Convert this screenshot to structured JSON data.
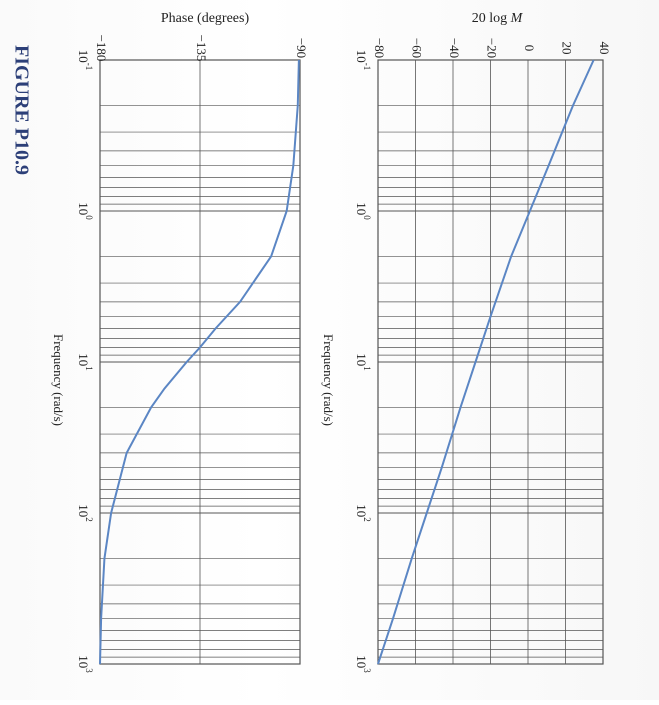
{
  "figure_caption": "FIGURE P10.9",
  "colors": {
    "curve": "#5b86c4",
    "grid": "#555555",
    "caption": "#2c3f78"
  },
  "chart_data": [
    {
      "type": "line",
      "title": "",
      "ylabel": "20 log M",
      "xlabel": "Frequency (rad/s)",
      "x_scale": "log",
      "xlim": [
        0.1,
        1000
      ],
      "ylim": [
        -80,
        40
      ],
      "x_ticks": [
        "10^-1",
        "10^0",
        "10^1",
        "10^2",
        "10^3"
      ],
      "x_tick_labels": [
        {
          "base": "10",
          "exp": "-1"
        },
        {
          "base": "10",
          "exp": "0"
        },
        {
          "base": "10",
          "exp": "1"
        },
        {
          "base": "10",
          "exp": "2"
        },
        {
          "base": "10",
          "exp": "3"
        }
      ],
      "y_ticks": [
        "40",
        "20",
        "0",
        "-20",
        "-40",
        "-60",
        "-80"
      ],
      "grid": true,
      "series": [
        {
          "x": [
            0.1,
            0.2,
            0.5,
            1,
            2,
            5,
            10,
            20,
            50,
            100,
            200,
            500,
            1000
          ],
          "y": [
            35,
            24,
            11,
            1,
            -9,
            -20,
            -28,
            -36,
            -46,
            -54,
            -62,
            -72,
            -80
          ]
        }
      ]
    },
    {
      "type": "line",
      "title": "",
      "ylabel": "Phase (degrees)",
      "xlabel": "Frequency (rad/s)",
      "x_scale": "log",
      "xlim": [
        0.1,
        1000
      ],
      "ylim": [
        -180,
        -90
      ],
      "x_ticks": [
        "10^-1",
        "10^0",
        "10^1",
        "10^2",
        "10^3"
      ],
      "x_tick_labels": [
        {
          "base": "10",
          "exp": "-1"
        },
        {
          "base": "10",
          "exp": "0"
        },
        {
          "base": "10",
          "exp": "1"
        },
        {
          "base": "10",
          "exp": "2"
        },
        {
          "base": "10",
          "exp": "3"
        }
      ],
      "y_ticks": [
        "-90",
        "-135",
        "-180"
      ],
      "grid": true,
      "series": [
        {
          "x": [
            0.1,
            0.2,
            0.5,
            1,
            2,
            4,
            6,
            8,
            10,
            15,
            20,
            40,
            100,
            200,
            500,
            1000
          ],
          "y": [
            -90.5,
            -91,
            -93,
            -96,
            -103,
            -117,
            -128,
            -135,
            -141,
            -151,
            -157,
            -168,
            -175,
            -178,
            -179.5,
            -180
          ]
        }
      ]
    }
  ]
}
